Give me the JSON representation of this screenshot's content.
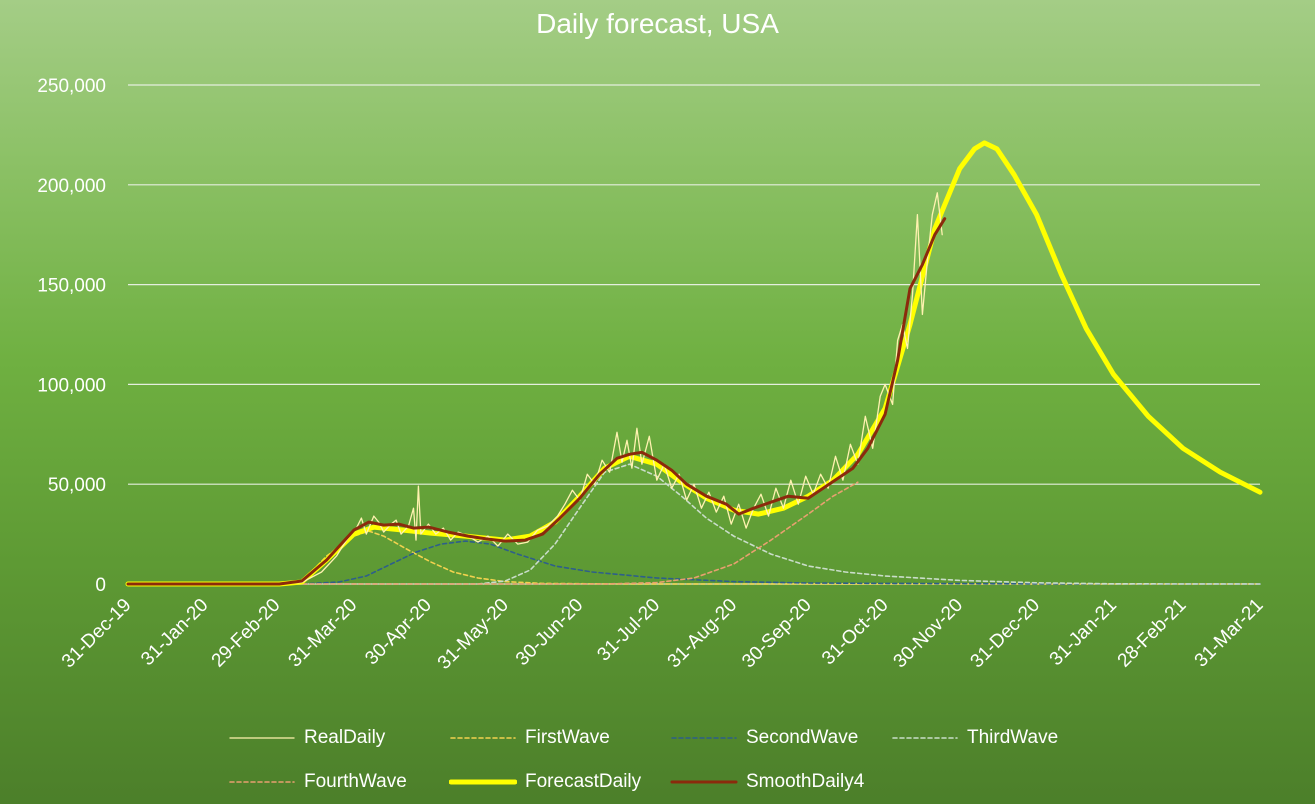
{
  "chart_data": {
    "type": "line",
    "title": "Daily forecast, USA",
    "xlabel": "",
    "ylabel": "",
    "ylim": [
      0,
      250000
    ],
    "y_ticks": [
      0,
      50000,
      100000,
      150000,
      200000,
      250000
    ],
    "y_tick_labels": [
      "0",
      "50,000",
      "100,000",
      "150,000",
      "200,000",
      "250,000"
    ],
    "x_range": [
      "2019-12-31",
      "2021-03-31"
    ],
    "x_ticks": [
      "2019-12-31",
      "2020-01-31",
      "2020-02-29",
      "2020-03-31",
      "2020-04-30",
      "2020-05-31",
      "2020-06-30",
      "2020-07-31",
      "2020-08-31",
      "2020-09-30",
      "2020-10-31",
      "2020-11-30",
      "2020-12-31",
      "2021-01-31",
      "2021-02-28",
      "2021-03-31"
    ],
    "x_tick_labels": [
      "31-Dec-19",
      "31-Jan-20",
      "29-Feb-20",
      "31-Mar-20",
      "30-Apr-20",
      "31-May-20",
      "30-Jun-20",
      "31-Jul-20",
      "31-Aug-20",
      "30-Sep-20",
      "31-Oct-20",
      "30-Nov-20",
      "31-Dec-20",
      "31-Jan-21",
      "28-Feb-21",
      "31-Mar-21"
    ],
    "grid": true,
    "legend_position": "bottom",
    "series": [
      {
        "name": "RealDaily",
        "color": "#fff2b0",
        "style": "solid",
        "points": [
          [
            "2019-12-31",
            0
          ],
          [
            "2020-03-01",
            0
          ],
          [
            "2020-03-10",
            800
          ],
          [
            "2020-03-18",
            6000
          ],
          [
            "2020-03-24",
            14000
          ],
          [
            "2020-03-28",
            22000
          ],
          [
            "2020-04-01",
            28000
          ],
          [
            "2020-04-03",
            33000
          ],
          [
            "2020-04-05",
            25000
          ],
          [
            "2020-04-08",
            34000
          ],
          [
            "2020-04-10",
            31000
          ],
          [
            "2020-04-12",
            26000
          ],
          [
            "2020-04-15",
            30000
          ],
          [
            "2020-04-17",
            32000
          ],
          [
            "2020-04-19",
            25000
          ],
          [
            "2020-04-22",
            29000
          ],
          [
            "2020-04-24",
            38000
          ],
          [
            "2020-04-25",
            22000
          ],
          [
            "2020-04-26",
            49000
          ],
          [
            "2020-04-27",
            25000
          ],
          [
            "2020-04-30",
            30000
          ],
          [
            "2020-05-03",
            25000
          ],
          [
            "2020-05-06",
            28000
          ],
          [
            "2020-05-09",
            22000
          ],
          [
            "2020-05-12",
            26000
          ],
          [
            "2020-05-16",
            24000
          ],
          [
            "2020-05-20",
            21000
          ],
          [
            "2020-05-24",
            24000
          ],
          [
            "2020-05-28",
            19000
          ],
          [
            "2020-06-01",
            25000
          ],
          [
            "2020-06-05",
            20000
          ],
          [
            "2020-06-09",
            21000
          ],
          [
            "2020-06-13",
            27000
          ],
          [
            "2020-06-17",
            29000
          ],
          [
            "2020-06-21",
            34000
          ],
          [
            "2020-06-24",
            40000
          ],
          [
            "2020-06-27",
            47000
          ],
          [
            "2020-06-30",
            42000
          ],
          [
            "2020-07-03",
            55000
          ],
          [
            "2020-07-06",
            50000
          ],
          [
            "2020-07-09",
            62000
          ],
          [
            "2020-07-12",
            56000
          ],
          [
            "2020-07-15",
            76000
          ],
          [
            "2020-07-17",
            61000
          ],
          [
            "2020-07-19",
            72000
          ],
          [
            "2020-07-21",
            58000
          ],
          [
            "2020-07-23",
            78000
          ],
          [
            "2020-07-25",
            60000
          ],
          [
            "2020-07-28",
            74000
          ],
          [
            "2020-07-31",
            52000
          ],
          [
            "2020-08-03",
            60000
          ],
          [
            "2020-08-06",
            48000
          ],
          [
            "2020-08-09",
            55000
          ],
          [
            "2020-08-12",
            42000
          ],
          [
            "2020-08-15",
            50000
          ],
          [
            "2020-08-18",
            38000
          ],
          [
            "2020-08-21",
            46000
          ],
          [
            "2020-08-24",
            36000
          ],
          [
            "2020-08-27",
            44000
          ],
          [
            "2020-08-30",
            30000
          ],
          [
            "2020-09-02",
            40000
          ],
          [
            "2020-09-05",
            28000
          ],
          [
            "2020-09-08",
            38000
          ],
          [
            "2020-09-11",
            45000
          ],
          [
            "2020-09-14",
            34000
          ],
          [
            "2020-09-17",
            48000
          ],
          [
            "2020-09-20",
            38000
          ],
          [
            "2020-09-23",
            52000
          ],
          [
            "2020-09-26",
            40000
          ],
          [
            "2020-09-29",
            54000
          ],
          [
            "2020-10-02",
            45000
          ],
          [
            "2020-10-05",
            55000
          ],
          [
            "2020-10-08",
            48000
          ],
          [
            "2020-10-11",
            64000
          ],
          [
            "2020-10-14",
            52000
          ],
          [
            "2020-10-17",
            70000
          ],
          [
            "2020-10-20",
            60000
          ],
          [
            "2020-10-23",
            84000
          ],
          [
            "2020-10-26",
            68000
          ],
          [
            "2020-10-29",
            94000
          ],
          [
            "2020-10-31",
            100000
          ],
          [
            "2020-11-03",
            90000
          ],
          [
            "2020-11-05",
            122000
          ],
          [
            "2020-11-07",
            130000
          ],
          [
            "2020-11-09",
            118000
          ],
          [
            "2020-11-11",
            145000
          ],
          [
            "2020-11-13",
            185000
          ],
          [
            "2020-11-15",
            135000
          ],
          [
            "2020-11-17",
            162000
          ],
          [
            "2020-11-19",
            185000
          ],
          [
            "2020-11-21",
            196000
          ],
          [
            "2020-11-23",
            175000
          ]
        ]
      },
      {
        "name": "FirstWave",
        "color": "#f2d24e",
        "style": "dashed",
        "points": [
          [
            "2019-12-31",
            0
          ],
          [
            "2020-03-01",
            0
          ],
          [
            "2020-03-10",
            1000
          ],
          [
            "2020-03-20",
            14000
          ],
          [
            "2020-03-31",
            24000
          ],
          [
            "2020-04-06",
            26500
          ],
          [
            "2020-04-12",
            24000
          ],
          [
            "2020-04-22",
            17000
          ],
          [
            "2020-05-01",
            11000
          ],
          [
            "2020-05-10",
            6000
          ],
          [
            "2020-05-20",
            3000
          ],
          [
            "2020-05-31",
            1200
          ],
          [
            "2020-06-15",
            300
          ],
          [
            "2020-07-15",
            0
          ],
          [
            "2021-03-31",
            0
          ]
        ]
      },
      {
        "name": "SecondWave",
        "color": "#2e5f8a",
        "style": "dashed",
        "points": [
          [
            "2019-12-31",
            0
          ],
          [
            "2020-03-10",
            0
          ],
          [
            "2020-03-25",
            1000
          ],
          [
            "2020-04-05",
            4000
          ],
          [
            "2020-04-15",
            10000
          ],
          [
            "2020-04-25",
            16000
          ],
          [
            "2020-05-05",
            20000
          ],
          [
            "2020-05-15",
            21500
          ],
          [
            "2020-05-25",
            20000
          ],
          [
            "2020-06-05",
            15000
          ],
          [
            "2020-06-20",
            9000
          ],
          [
            "2020-07-05",
            6000
          ],
          [
            "2020-07-31",
            3000
          ],
          [
            "2020-08-31",
            1200
          ],
          [
            "2020-09-30",
            500
          ],
          [
            "2020-10-31",
            300
          ],
          [
            "2020-11-30",
            200
          ],
          [
            "2020-12-31",
            100
          ],
          [
            "2021-03-31",
            0
          ]
        ]
      },
      {
        "name": "ThirdWave",
        "color": "#c9ddc9",
        "style": "dashed",
        "points": [
          [
            "2019-12-31",
            0
          ],
          [
            "2020-05-20",
            0
          ],
          [
            "2020-05-31",
            1500
          ],
          [
            "2020-06-10",
            7000
          ],
          [
            "2020-06-20",
            20000
          ],
          [
            "2020-07-01",
            40000
          ],
          [
            "2020-07-10",
            56000
          ],
          [
            "2020-07-20",
            60000
          ],
          [
            "2020-07-31",
            54000
          ],
          [
            "2020-08-10",
            44000
          ],
          [
            "2020-08-20",
            33000
          ],
          [
            "2020-08-31",
            24000
          ],
          [
            "2020-09-15",
            15000
          ],
          [
            "2020-09-30",
            9000
          ],
          [
            "2020-10-15",
            6000
          ],
          [
            "2020-10-31",
            4000
          ],
          [
            "2020-11-30",
            1800
          ],
          [
            "2020-12-31",
            600
          ],
          [
            "2021-01-31",
            100
          ],
          [
            "2021-03-31",
            0
          ]
        ]
      },
      {
        "name": "FourthWave",
        "color": "#e8a070",
        "style": "dashed",
        "points": [
          [
            "2019-12-31",
            0
          ],
          [
            "2020-07-10",
            0
          ],
          [
            "2020-07-31",
            700
          ],
          [
            "2020-08-15",
            3000
          ],
          [
            "2020-08-31",
            10000
          ],
          [
            "2020-09-15",
            22000
          ],
          [
            "2020-09-30",
            35000
          ],
          [
            "2020-10-10",
            44000
          ],
          [
            "2020-10-20",
            51000
          ]
        ]
      },
      {
        "name": "ForecastDaily",
        "color": "#ffff00",
        "style": "solid-thick",
        "points": [
          [
            "2019-12-31",
            0
          ],
          [
            "2020-03-01",
            0
          ],
          [
            "2020-03-10",
            1000
          ],
          [
            "2020-03-20",
            12000
          ],
          [
            "2020-03-31",
            25000
          ],
          [
            "2020-04-08",
            28500
          ],
          [
            "2020-04-20",
            27000
          ],
          [
            "2020-05-01",
            25500
          ],
          [
            "2020-05-15",
            24000
          ],
          [
            "2020-05-31",
            22000
          ],
          [
            "2020-06-10",
            24000
          ],
          [
            "2020-06-20",
            31000
          ],
          [
            "2020-06-30",
            44000
          ],
          [
            "2020-07-10",
            58000
          ],
          [
            "2020-07-20",
            64000
          ],
          [
            "2020-07-31",
            60000
          ],
          [
            "2020-08-10",
            51000
          ],
          [
            "2020-08-20",
            43000
          ],
          [
            "2020-08-31",
            37000
          ],
          [
            "2020-09-10",
            35000
          ],
          [
            "2020-09-20",
            38000
          ],
          [
            "2020-09-30",
            44000
          ],
          [
            "2020-10-10",
            52000
          ],
          [
            "2020-10-20",
            65000
          ],
          [
            "2020-10-31",
            88000
          ],
          [
            "2020-11-10",
            130000
          ],
          [
            "2020-11-20",
            178000
          ],
          [
            "2020-11-30",
            208000
          ],
          [
            "2020-12-06",
            218000
          ],
          [
            "2020-12-10",
            221000
          ],
          [
            "2020-12-15",
            218000
          ],
          [
            "2020-12-22",
            205000
          ],
          [
            "2020-12-31",
            185000
          ],
          [
            "2021-01-10",
            155000
          ],
          [
            "2021-01-20",
            128000
          ],
          [
            "2021-01-31",
            105000
          ],
          [
            "2021-02-14",
            84000
          ],
          [
            "2021-02-28",
            68000
          ],
          [
            "2021-03-15",
            56000
          ],
          [
            "2021-03-31",
            46000
          ]
        ]
      },
      {
        "name": "SmoothDaily4",
        "color": "#8b2a0c",
        "style": "solid",
        "points": [
          [
            "2019-12-31",
            0
          ],
          [
            "2020-03-01",
            0
          ],
          [
            "2020-03-10",
            1500
          ],
          [
            "2020-03-20",
            12000
          ],
          [
            "2020-03-31",
            27000
          ],
          [
            "2020-04-06",
            31000
          ],
          [
            "2020-04-12",
            29500
          ],
          [
            "2020-04-18",
            30000
          ],
          [
            "2020-04-24",
            28000
          ],
          [
            "2020-04-30",
            28500
          ],
          [
            "2020-05-08",
            26000
          ],
          [
            "2020-05-16",
            24000
          ],
          [
            "2020-05-24",
            22500
          ],
          [
            "2020-05-31",
            21500
          ],
          [
            "2020-06-08",
            22000
          ],
          [
            "2020-06-15",
            25000
          ],
          [
            "2020-06-22",
            33000
          ],
          [
            "2020-06-30",
            43000
          ],
          [
            "2020-07-08",
            55000
          ],
          [
            "2020-07-15",
            63000
          ],
          [
            "2020-07-20",
            65000
          ],
          [
            "2020-07-25",
            66000
          ],
          [
            "2020-07-31",
            62000
          ],
          [
            "2020-08-06",
            57000
          ],
          [
            "2020-08-12",
            50000
          ],
          [
            "2020-08-20",
            44000
          ],
          [
            "2020-08-28",
            40000
          ],
          [
            "2020-09-02",
            35000
          ],
          [
            "2020-09-08",
            38000
          ],
          [
            "2020-09-15",
            41000
          ],
          [
            "2020-09-22",
            44000
          ],
          [
            "2020-09-30",
            43000
          ],
          [
            "2020-10-06",
            48000
          ],
          [
            "2020-10-12",
            53000
          ],
          [
            "2020-10-18",
            58000
          ],
          [
            "2020-10-24",
            68000
          ],
          [
            "2020-10-31",
            85000
          ],
          [
            "2020-11-05",
            112000
          ],
          [
            "2020-11-10",
            148000
          ],
          [
            "2020-11-15",
            160000
          ],
          [
            "2020-11-20",
            175000
          ],
          [
            "2020-11-24",
            183000
          ]
        ]
      }
    ]
  }
}
